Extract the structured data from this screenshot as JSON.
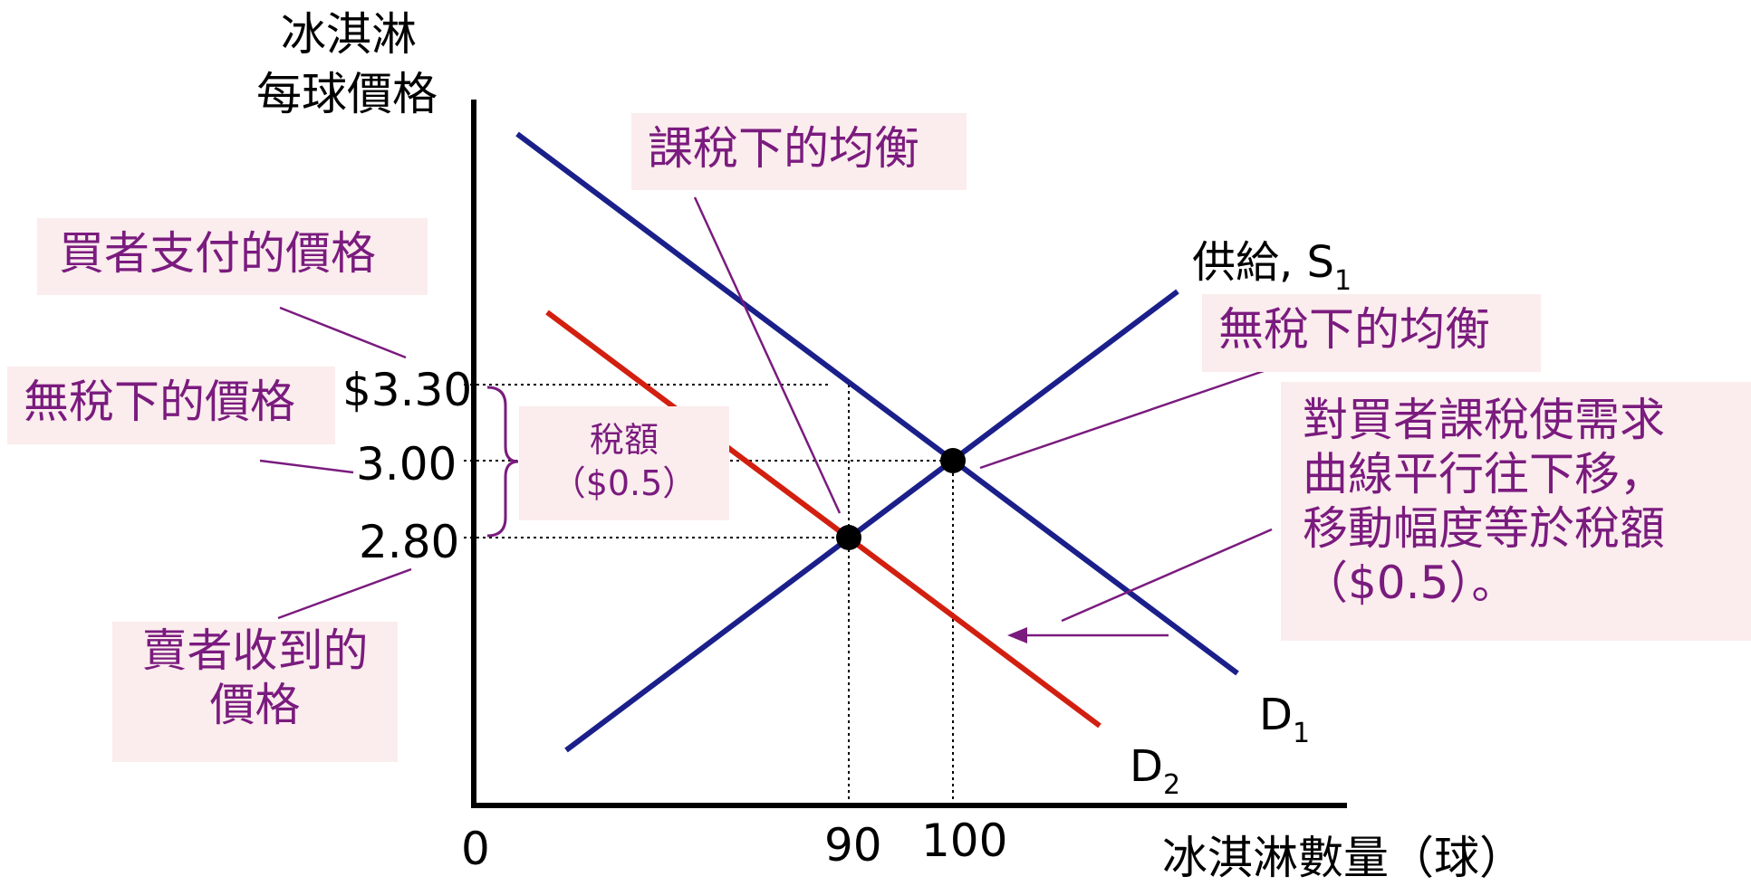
{
  "chart_data": {
    "type": "line",
    "axes": {
      "y_title_lines": [
        "冰淇淋",
        "每球價格"
      ],
      "x_title": "冰淇淋數量（球）",
      "origin_label": "0",
      "x_ticks": [
        "90",
        "100"
      ],
      "y_ticks": [
        "$3.30",
        "3.00",
        "2.80"
      ]
    },
    "curves": [
      {
        "name": "供給",
        "label_main": "供給, S",
        "label_sub": "1",
        "color": "#1b1f8a"
      },
      {
        "name": "D1",
        "label_main": "D",
        "label_sub": "1",
        "color": "#1b1f8a"
      },
      {
        "name": "D2",
        "label_main": "D",
        "label_sub": "2",
        "color": "#d21f0f"
      }
    ],
    "equilibria": [
      {
        "x": 100,
        "y": 3.0
      },
      {
        "x": 90,
        "y": 2.8
      }
    ],
    "tax_amount": 0.5
  },
  "annotations": {
    "buyer_price": "買者支付的價格",
    "no_tax_price": "無稅下的價格",
    "seller_price_lines": [
      "賣者收到的",
      "價格"
    ],
    "tax_eq": "課稅下的均衡",
    "no_tax_eq": "無稅下的均衡",
    "tax_amount_lines": [
      "稅額",
      "（$0.5）"
    ],
    "explanation_lines": [
      "對買者課稅使需求",
      "曲線平行往下移，",
      "移動幅度等於稅額",
      "（$0.5）。"
    ]
  },
  "colors": {
    "curve_blue": "#1b1f8a",
    "curve_red": "#d21f0f",
    "annotation_purple": "#7a1b7e",
    "box_bg": "#fbeced"
  }
}
